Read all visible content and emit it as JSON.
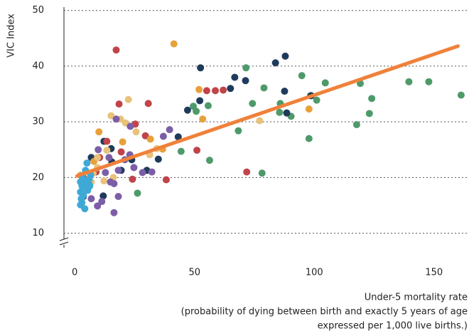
{
  "chart_data": {
    "type": "scatter",
    "ylabel": "VIC Index",
    "xlabel": [
      "Under-5 mortality rate",
      "(probability of dying between birth and exactly 5 years of age",
      "expressed per 1,000 live births.)"
    ],
    "xlim": [
      -4.5,
      164
    ],
    "ylim": [
      7.4,
      50.6
    ],
    "xticks": [
      0,
      50,
      100,
      150
    ],
    "yticks": [
      10,
      20,
      30,
      40,
      50
    ],
    "grid": true,
    "series": [
      {
        "color": "#4e9a6a",
        "x": [
          49.5,
          50.7,
          55.7,
          56.3,
          68.3,
          71.5,
          74.2,
          79,
          78.2,
          85.5,
          85.8,
          90.3,
          94.8,
          97.8,
          98.4,
          101,
          104.6,
          117.7,
          119.2,
          123,
          124,
          139.5,
          147.8,
          161.3,
          44.4,
          26.2
        ],
        "values": [
          32.8,
          31.9,
          32.9,
          23.1,
          28.4,
          39.7,
          33.3,
          36.1,
          20.8,
          31.7,
          33.3,
          31,
          38.3,
          27,
          34.7,
          33.9,
          37,
          29.5,
          36.9,
          31.5,
          34.2,
          37.2,
          37.2,
          34.8,
          24.7,
          17.2
        ]
      },
      {
        "color": "#1f3b5c",
        "x": [
          52.5,
          47.1,
          52.2,
          65,
          66.8,
          71.3,
          83.8,
          87.9,
          87.6,
          88.5,
          98.7,
          43.2,
          34.9,
          6.9,
          15.2,
          15.5,
          12.2,
          3.6,
          11.9,
          19.4,
          30.1,
          23.8
        ],
        "values": [
          39.7,
          32.1,
          33.8,
          36,
          38,
          37.4,
          40.6,
          41.8,
          35.5,
          31.6,
          34.7,
          27.3,
          23.3,
          23.6,
          25.2,
          22.8,
          26.5,
          16.6,
          16.7,
          21.3,
          21.3,
          23.2
        ]
      },
      {
        "color": "#c0444a",
        "x": [
          17.3,
          30.7,
          18.5,
          55.1,
          58.7,
          62,
          38.2,
          51,
          71.8,
          29.5,
          13.4,
          25.3,
          24.1,
          10.4,
          8.9,
          19.4,
          3.6
        ],
        "values": [
          42.9,
          33.3,
          33.2,
          35.6,
          35.6,
          35.7,
          19.6,
          24.9,
          21,
          27.5,
          26.5,
          29.6,
          19.7,
          23.6,
          21,
          24.6,
          20
        ]
      },
      {
        "color": "#e8a03a",
        "x": [
          41.4,
          51.9,
          53.4,
          97.8,
          10.1,
          31.6,
          36.7,
          20,
          8,
          2.4
        ],
        "values": [
          44,
          35.8,
          30.5,
          32.3,
          28.2,
          26.9,
          25.1,
          26.4,
          22.9,
          20.4
        ]
      },
      {
        "color": "#e8c27a",
        "x": [
          22.4,
          15.2,
          19.1,
          21.2,
          25.6,
          34.3,
          31.3,
          77.2,
          13.4,
          7.7,
          9.5,
          16.1,
          12.2,
          6.9,
          9.5
        ],
        "values": [
          34,
          31.1,
          30.5,
          29.8,
          28.2,
          25.2,
          24.1,
          30.2,
          24.9,
          20.8,
          23.6,
          20,
          19.4,
          19.2,
          21.8
        ]
      },
      {
        "color": "#7b5ea7",
        "x": [
          39.6,
          37,
          23.2,
          17.3,
          23,
          24.7,
          28.3,
          32.2,
          20.9,
          18.2,
          14.9,
          16.4,
          18.2,
          11.3,
          9.5,
          16.4,
          6,
          6.9,
          12.8,
          9.8,
          14.3
        ],
        "values": [
          28.6,
          27.4,
          29.2,
          30.5,
          24.1,
          21.8,
          20.9,
          21,
          23.2,
          21.3,
          19.2,
          18.9,
          16.6,
          15.7,
          14.9,
          13.7,
          18.7,
          16.2,
          20.9,
          25,
          23.6
        ]
      },
      {
        "color": "#3fa9d6",
        "x": [
          5.1,
          3,
          2.4,
          3,
          2.4,
          2.7,
          3,
          4.2,
          4.5,
          3.9,
          4.8,
          6,
          6.6,
          4.2,
          3.6,
          5.4,
          2.4,
          6.3
        ],
        "values": [
          22.6,
          20.3,
          19.2,
          18.5,
          17.4,
          16.2,
          15.5,
          14.4,
          21.3,
          19.6,
          19,
          19.7,
          20.5,
          18.1,
          16.8,
          17.7,
          15.1,
          18.5
        ]
      }
    ],
    "trendline": {
      "color": "#f0813a",
      "x": [
        1,
        160
      ],
      "values": [
        20.3,
        43.6
      ]
    }
  }
}
